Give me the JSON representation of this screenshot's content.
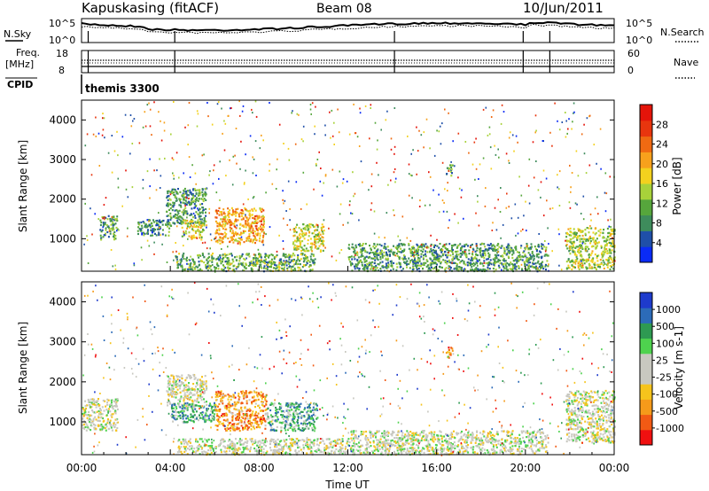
{
  "header": {
    "station": "Kapuskasing (fitACF)",
    "beam": "Beam 08",
    "date": "10/Jun/2011"
  },
  "panels": {
    "nsky_label": "N.Sky",
    "nsky_ticks": [
      "10^5",
      "10^0"
    ],
    "nsearch_label": "N.Search",
    "freq_label": "Freq.",
    "freq_unit": "[MHz]",
    "freq_ticks": [
      "18",
      "8"
    ],
    "nave_label": "Nave",
    "nave_ticks": [
      "60",
      "0"
    ],
    "cpid_label": "CPID",
    "cpid_value": "themis 3300"
  },
  "colors": {
    "power": [
      "#0a2bf5",
      "#1f4fa8",
      "#3e8c5c",
      "#56a63c",
      "#a8d23a",
      "#f3d11e",
      "#f7a11c",
      "#ef6a12",
      "#e8350e",
      "#e4140a"
    ],
    "velocity": [
      "#f01010",
      "#f25a14",
      "#f59a1a",
      "#f6c41c",
      "#c8c8c0",
      "#c8c8c0",
      "#4ed24e",
      "#2e9a52",
      "#2c6bb8",
      "#1e3bcc"
    ]
  },
  "chart_data": [
    {
      "type": "heatmap",
      "title": "",
      "ylabel": "Slant Range [km]",
      "yticks": [
        1000,
        2000,
        3000,
        4000
      ],
      "ylim": [
        180,
        4500
      ],
      "colorbar_label": "Power [dB]",
      "colorbar_ticks": [
        "4",
        "8",
        "12",
        "16",
        "20",
        "24",
        "28"
      ],
      "colorbar_range": [
        0,
        30
      ],
      "regions": [
        {
          "t0": 0.8,
          "t1": 1.6,
          "r0": 1000,
          "r1": 1600,
          "level": 0.3
        },
        {
          "t0": 2.5,
          "t1": 4.0,
          "r0": 1100,
          "r1": 1500,
          "level": 0.25
        },
        {
          "t0": 3.8,
          "t1": 5.6,
          "r0": 1400,
          "r1": 2300,
          "level": 0.3
        },
        {
          "t0": 4.5,
          "t1": 5.5,
          "r0": 1000,
          "r1": 1500,
          "level": 0.5
        },
        {
          "t0": 6.0,
          "t1": 8.2,
          "r0": 900,
          "r1": 1800,
          "level": 0.65
        },
        {
          "t0": 9.5,
          "t1": 10.9,
          "r0": 700,
          "r1": 1400,
          "level": 0.5
        },
        {
          "t0": 4.2,
          "t1": 10.5,
          "r0": 200,
          "r1": 650,
          "level": 0.35
        },
        {
          "t0": 12.0,
          "t1": 21.0,
          "r0": 200,
          "r1": 900,
          "level": 0.3
        },
        {
          "t0": 21.8,
          "t1": 24.0,
          "r0": 250,
          "r1": 1300,
          "level": 0.45
        },
        {
          "t0": 16.4,
          "t1": 16.7,
          "r0": 2600,
          "r1": 2900,
          "level": 0.3
        }
      ]
    },
    {
      "type": "heatmap",
      "title": "",
      "xlabel": "Time UT",
      "ylabel": "Slant Range [km]",
      "xticks": [
        "00:00",
        "04:00",
        "08:00",
        "12:00",
        "16:00",
        "20:00",
        "00:00"
      ],
      "yticks": [
        1000,
        2000,
        3000,
        4000
      ],
      "ylim": [
        180,
        4500
      ],
      "xlim": [
        0,
        24
      ],
      "colorbar_label": "Velocity [m s-1]",
      "colorbar_ticks": [
        "1000",
        "500",
        "100",
        "25",
        "-25",
        "-100",
        "-500",
        "-1000"
      ],
      "regions": [
        {
          "t0": 0.0,
          "t1": 1.6,
          "r0": 800,
          "r1": 1600,
          "level": 0.5
        },
        {
          "t0": 3.8,
          "t1": 5.6,
          "r0": 1400,
          "r1": 2200,
          "level": 0.5
        },
        {
          "t0": 4.0,
          "t1": 6.0,
          "r0": 1000,
          "r1": 1500,
          "level": 0.7
        },
        {
          "t0": 6.0,
          "t1": 8.3,
          "r0": 800,
          "r1": 1800,
          "level": 0.25
        },
        {
          "t0": 8.3,
          "t1": 10.6,
          "r0": 800,
          "r1": 1500,
          "level": 0.7
        },
        {
          "t0": 4.3,
          "t1": 12.0,
          "r0": 200,
          "r1": 600,
          "level": 0.5
        },
        {
          "t0": 12.0,
          "t1": 21.0,
          "r0": 200,
          "r1": 800,
          "level": 0.5
        },
        {
          "t0": 21.8,
          "t1": 24.0,
          "r0": 500,
          "r1": 1800,
          "level": 0.5
        },
        {
          "t0": 16.4,
          "t1": 16.7,
          "r0": 2600,
          "r1": 2900,
          "level": 0.15
        }
      ]
    }
  ]
}
